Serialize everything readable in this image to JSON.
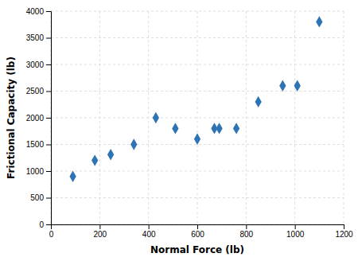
{
  "chart_data": {
    "type": "scatter",
    "x": [
      90,
      180,
      245,
      340,
      430,
      510,
      600,
      670,
      690,
      760,
      850,
      950,
      1010,
      1100
    ],
    "values": [
      900,
      1200,
      1310,
      1500,
      2000,
      1800,
      1600,
      1800,
      1800,
      1800,
      2300,
      2600,
      2600,
      3800
    ],
    "xlabel": "Normal Force (lb)",
    "ylabel": "Frictional Capacity (lb)",
    "xlim": [
      0,
      1200
    ],
    "ylim": [
      0,
      4000
    ],
    "xticks": [
      0,
      200,
      400,
      600,
      800,
      1000,
      1200
    ],
    "yticks": [
      0,
      500,
      1000,
      1500,
      2000,
      2500,
      3000,
      3500,
      4000
    ],
    "color": "#2E74B5",
    "marker": "diamond",
    "grid": true
  }
}
